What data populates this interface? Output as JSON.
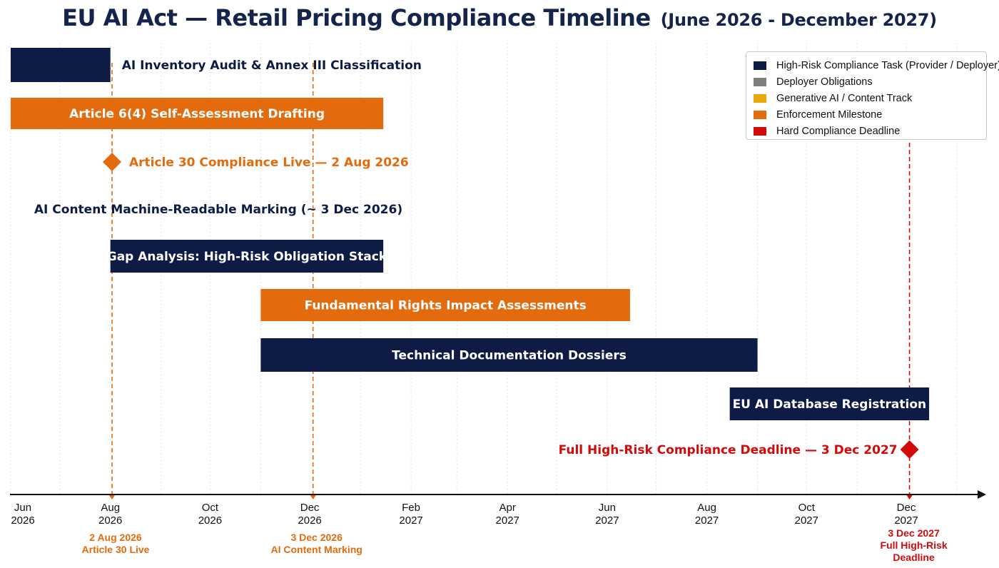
{
  "title": {
    "main": "EU AI Act — Retail Pricing Compliance Timeline",
    "sub": "(June 2026 - December 2027)"
  },
  "colors": {
    "navy": "#0d1b45",
    "orange": "#e36b0e",
    "gray": "#7f7f7f",
    "gold": "#e7a90e",
    "red": "#d10a0a"
  },
  "legend": [
    {
      "label": "High-Risk Compliance Task (Provider / Deployer)",
      "color": "#0d1b45"
    },
    {
      "label": "Deployer Obligations",
      "color": "#7f7f7f"
    },
    {
      "label": "Generative AI / Content Track",
      "color": "#e7a90e"
    },
    {
      "label": "Enforcement Milestone",
      "color": "#e36b0e"
    },
    {
      "label": "Hard Compliance Deadline",
      "color": "#d10a0a"
    }
  ],
  "axis_ticks": [
    {
      "date": "2026-06-01",
      "month": "Jun",
      "year": "2026"
    },
    {
      "date": "2026-08-01",
      "month": "Aug",
      "year": "2026"
    },
    {
      "date": "2026-10-01",
      "month": "Oct",
      "year": "2026"
    },
    {
      "date": "2026-12-01",
      "month": "Dec",
      "year": "2026"
    },
    {
      "date": "2027-02-01",
      "month": "Feb",
      "year": "2027"
    },
    {
      "date": "2027-04-01",
      "month": "Apr",
      "year": "2027"
    },
    {
      "date": "2027-06-01",
      "month": "Jun",
      "year": "2027"
    },
    {
      "date": "2027-08-01",
      "month": "Aug",
      "year": "2027"
    },
    {
      "date": "2027-10-01",
      "month": "Oct",
      "year": "2027"
    },
    {
      "date": "2027-12-01",
      "month": "Dec",
      "year": "2027"
    }
  ],
  "tasks": [
    {
      "label": "AI Inventory Audit & Annex III Classification",
      "start": "2026-06-01",
      "end": "2026-08-01",
      "color": "#0d1b45",
      "label_position": "right"
    },
    {
      "label": "Article 6(4) Self-Assessment Drafting",
      "start": "2026-06-01",
      "end": "2027-01-15",
      "color": "#e36b0e",
      "label_position": "inside"
    },
    {
      "label": "Gap Analysis: High-Risk Obligation Stack",
      "start": "2026-08-01",
      "end": "2027-01-15",
      "color": "#0d1b45",
      "label_position": "inside"
    },
    {
      "label": "Fundamental Rights Impact Assessments",
      "start": "2026-11-01",
      "end": "2027-06-15",
      "color": "#e36b0e",
      "label_position": "inside"
    },
    {
      "label": "Technical Documentation Dossiers",
      "start": "2026-11-01",
      "end": "2027-09-01",
      "color": "#0d1b45",
      "label_position": "inside"
    },
    {
      "label": "EU AI Database Registration",
      "start": "2027-08-15",
      "end": "2027-12-15",
      "color": "#0d1b45",
      "label_position": "inside"
    }
  ],
  "milestones": [
    {
      "label": "Article 30 Compliance Live — 2 Aug 2026",
      "date": "2026-08-02",
      "color": "#e36b0e",
      "marker": "diamond",
      "label_side": "right"
    },
    {
      "label": "AI Content Machine-Readable Marking (~ 3 Dec 2026)",
      "date": "2026-12-03",
      "color": "#0d1b45",
      "marker": "none",
      "label_side": "center"
    },
    {
      "label": "Full High-Risk Compliance Deadline — 3 Dec 2027",
      "date": "2027-12-03",
      "color": "#d10a0a",
      "marker": "diamond",
      "label_side": "left"
    }
  ],
  "reference_lines": [
    {
      "date": "2026-08-02",
      "color": "#e36b0e",
      "note": [
        "2 Aug 2026",
        "Article 30 Live"
      ]
    },
    {
      "date": "2026-12-03",
      "color": "#e36b0e",
      "note": [
        "3 Dec 2026",
        "AI Content Marking"
      ]
    },
    {
      "date": "2027-12-03",
      "color": "#d10a0a",
      "note": [
        "3 Dec 2027",
        "Full High-Risk",
        "Deadline"
      ]
    }
  ]
}
